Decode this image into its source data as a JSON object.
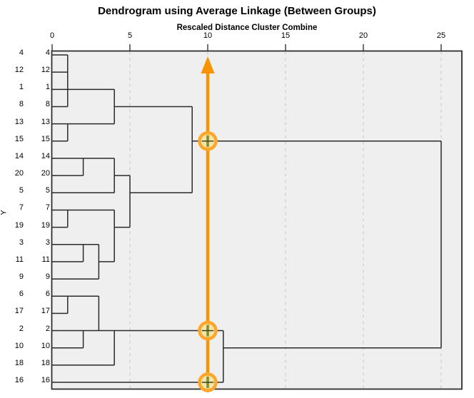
{
  "header": {
    "title": "Dendrogram using Average Linkage (Between Groups)",
    "subtitle": "Rescaled Distance Cluster Combine"
  },
  "axis": {
    "y_label": "Y",
    "ticks": [
      0,
      5,
      10,
      15,
      20,
      25
    ],
    "gridlines": [
      5,
      10,
      15,
      20,
      25
    ],
    "range": [
      0,
      25
    ]
  },
  "rows": [
    "4",
    "12",
    "1",
    "8",
    "13",
    "15",
    "14",
    "20",
    "5",
    "7",
    "19",
    "3",
    "11",
    "9",
    "6",
    "17",
    "2",
    "10",
    "18",
    "16"
  ],
  "colors": {
    "plot_bg": "#efeff0",
    "line": "#2a2a2a",
    "grid": "#cccccc",
    "border": "#2e2e2e",
    "cursor_orange": "#f99300",
    "ring_orange": "#ffa629",
    "marker_fill": "#ede6a0"
  },
  "chart_data": {
    "type": "dendrogram",
    "orientation": "horizontal",
    "title": "Dendrogram using Average Linkage (Between Groups)",
    "distance_axis": {
      "label": "Rescaled Distance Cluster Combine",
      "range": [
        0,
        25
      ],
      "ticks": [
        0,
        5,
        10,
        15,
        20,
        25
      ]
    },
    "leaf_order": [
      "4",
      "12",
      "1",
      "8",
      "13",
      "15",
      "14",
      "20",
      "5",
      "7",
      "19",
      "3",
      "11",
      "9",
      "6",
      "17",
      "2",
      "10",
      "18",
      "16"
    ],
    "merges": [
      {
        "distance": 1.0,
        "joins": [
          "4",
          "12",
          "1",
          "8"
        ]
      },
      {
        "distance": 1.0,
        "joins": [
          "13",
          "15"
        ]
      },
      {
        "distance": 1.0,
        "joins": [
          "7",
          "19"
        ]
      },
      {
        "distance": 1.0,
        "joins": [
          "6",
          "17"
        ]
      },
      {
        "distance": 2.0,
        "joins": [
          "14",
          "20"
        ]
      },
      {
        "distance": 2.0,
        "joins": [
          "3",
          "11"
        ]
      },
      {
        "distance": 2.0,
        "joins": [
          "2",
          "10"
        ]
      },
      {
        "distance": 3.0,
        "joins": [
          "{3,11}",
          "9"
        ]
      },
      {
        "distance": 3.0,
        "joins": [
          "{6,17}",
          "{2,10}"
        ]
      },
      {
        "distance": 4.0,
        "joins": [
          "{4,12,1,8}",
          "{13,15}"
        ]
      },
      {
        "distance": 4.0,
        "joins": [
          "{14,20}",
          "5"
        ]
      },
      {
        "distance": 4.0,
        "joins": [
          "{7,19}",
          "{3,11,9}"
        ]
      },
      {
        "distance": 4.0,
        "joins": [
          "{6,17,2,10}",
          "18"
        ]
      },
      {
        "distance": 5.0,
        "joins": [
          "{14,20,5}",
          "{7,19,3,11,9}"
        ]
      },
      {
        "distance": 9.0,
        "joins": [
          "{4,12,1,8,13,15}",
          "{14,20,5,7,19,3,11,9}"
        ]
      },
      {
        "distance": 11.0,
        "joins": [
          "{6,17,2,10,18}",
          "16"
        ]
      },
      {
        "distance": 25.0,
        "joins": [
          "top cluster (4..9)",
          "bottom cluster (6..16)"
        ]
      }
    ],
    "segments": {
      "h": [
        [
          0,
          0,
          1
        ],
        [
          1,
          0,
          1
        ],
        [
          2,
          0,
          4
        ],
        [
          3,
          0,
          1
        ],
        [
          3,
          4,
          9
        ],
        [
          4,
          0,
          4
        ],
        [
          5,
          0,
          1
        ],
        [
          5,
          9,
          25
        ],
        [
          6,
          0,
          4
        ],
        [
          7,
          0,
          2
        ],
        [
          7,
          4,
          5
        ],
        [
          8,
          0,
          4
        ],
        [
          8,
          5,
          9
        ],
        [
          9,
          0,
          4
        ],
        [
          10,
          0,
          1
        ],
        [
          10,
          4,
          5
        ],
        [
          11,
          0,
          3
        ],
        [
          12,
          0,
          2
        ],
        [
          12,
          3,
          4
        ],
        [
          13,
          0,
          3
        ],
        [
          14,
          0,
          3
        ],
        [
          15,
          0,
          1
        ],
        [
          16,
          0,
          11
        ],
        [
          17,
          0,
          2
        ],
        [
          17,
          11,
          25
        ],
        [
          18,
          0,
          4
        ],
        [
          19,
          0,
          11
        ]
      ],
      "v": [
        [
          1,
          0,
          3
        ],
        [
          1,
          4,
          5
        ],
        [
          1,
          9,
          10
        ],
        [
          1,
          14,
          15
        ],
        [
          2,
          6,
          7
        ],
        [
          2,
          11,
          12
        ],
        [
          2,
          16,
          17
        ],
        [
          3,
          11,
          13
        ],
        [
          3,
          14,
          16
        ],
        [
          4,
          2,
          4
        ],
        [
          4,
          6,
          8
        ],
        [
          4,
          9,
          12
        ],
        [
          4,
          16,
          18
        ],
        [
          5,
          7,
          10
        ],
        [
          9,
          3,
          8
        ],
        [
          11,
          16,
          19
        ],
        [
          25,
          5,
          17
        ]
      ]
    },
    "cursor": {
      "value": 10,
      "intersection_rows": [
        5,
        16,
        19
      ]
    }
  }
}
